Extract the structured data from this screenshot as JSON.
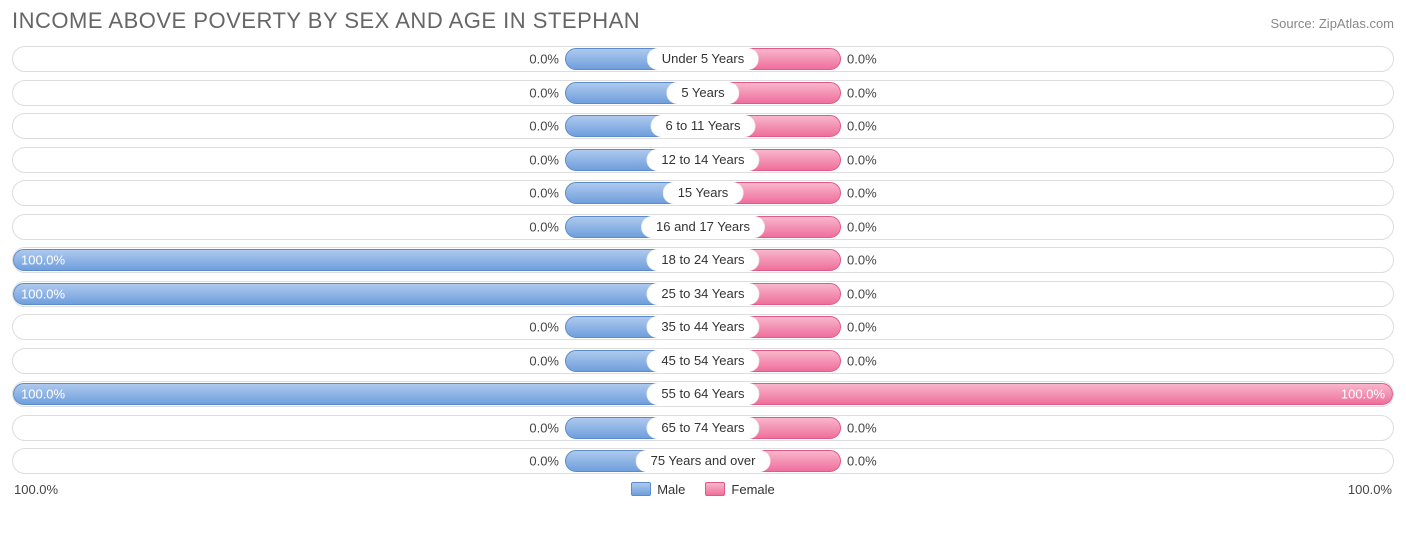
{
  "title": "INCOME ABOVE POVERTY BY SEX AND AGE IN STEPHAN",
  "source": "Source: ZipAtlas.com",
  "chart": {
    "type": "diverging-bar",
    "min_bar_percent": 20,
    "axis_left": "100.0%",
    "axis_right": "100.0%",
    "legend": {
      "male": "Male",
      "female": "Female"
    },
    "colors": {
      "male_top": "#aec9ed",
      "male_bottom": "#6f9fdd",
      "male_border": "#5b8bc9",
      "female_top": "#f8b6cc",
      "female_bottom": "#ef6f9c",
      "female_border": "#e05a88",
      "row_border": "#dddddd",
      "text": "#444444",
      "text_inside": "#ffffff",
      "title_color": "#666666",
      "background": "#ffffff"
    },
    "rows": [
      {
        "label": "Under 5 Years",
        "male": 0.0,
        "female": 0.0
      },
      {
        "label": "5 Years",
        "male": 0.0,
        "female": 0.0
      },
      {
        "label": "6 to 11 Years",
        "male": 0.0,
        "female": 0.0
      },
      {
        "label": "12 to 14 Years",
        "male": 0.0,
        "female": 0.0
      },
      {
        "label": "15 Years",
        "male": 0.0,
        "female": 0.0
      },
      {
        "label": "16 and 17 Years",
        "male": 0.0,
        "female": 0.0
      },
      {
        "label": "18 to 24 Years",
        "male": 100.0,
        "female": 0.0
      },
      {
        "label": "25 to 34 Years",
        "male": 100.0,
        "female": 0.0
      },
      {
        "label": "35 to 44 Years",
        "male": 0.0,
        "female": 0.0
      },
      {
        "label": "45 to 54 Years",
        "male": 0.0,
        "female": 0.0
      },
      {
        "label": "55 to 64 Years",
        "male": 100.0,
        "female": 100.0
      },
      {
        "label": "65 to 74 Years",
        "male": 0.0,
        "female": 0.0
      },
      {
        "label": "75 Years and over",
        "male": 0.0,
        "female": 0.0
      }
    ]
  }
}
